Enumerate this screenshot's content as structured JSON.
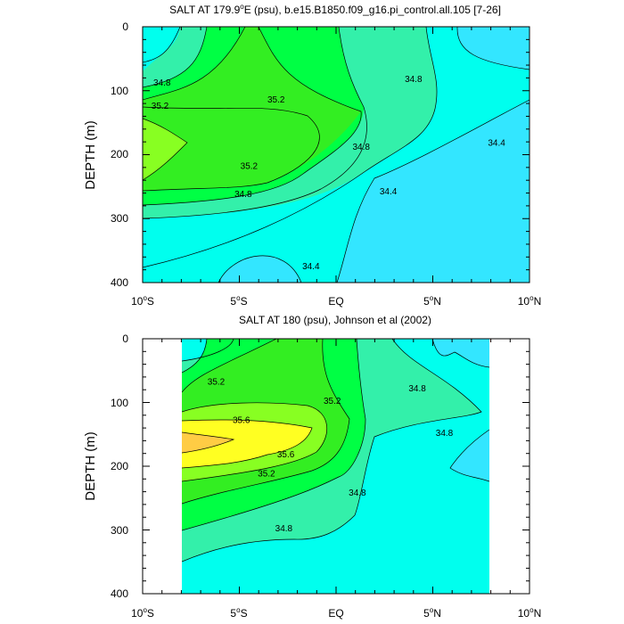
{
  "chart_data": [
    {
      "type": "contour",
      "title": "SALT AT 179.9°E (psu), b.e15.B1850.f09_g16.pi_control.all.105 [7-26]",
      "title_parts": {
        "pre": "SALT AT 179.9",
        "sup": "o",
        "post": "E (psu), b.e15.B1850.f09_g16.pi_control.all.105 [7-26]"
      },
      "ylabel": "DEPTH (m)",
      "x_ticks": [
        {
          "v": "10",
          "s": "o",
          "h": "S"
        },
        {
          "v": "5",
          "s": "o",
          "h": "S"
        },
        {
          "v": "EQ",
          "s": "",
          "h": ""
        },
        {
          "v": "5",
          "s": "o",
          "h": "N"
        },
        {
          "v": "10",
          "s": "o",
          "h": "N"
        }
      ],
      "y_ticks": [
        "0",
        "100",
        "200",
        "300",
        "400"
      ],
      "xlim": [
        -10,
        10
      ],
      "ylim": [
        400,
        0
      ],
      "contour_levels": [
        34.4,
        34.6,
        34.8,
        35.0,
        35.2,
        35.4
      ],
      "contour_labels": [
        {
          "text": "34.8",
          "lat": -9.0,
          "depth": 88
        },
        {
          "text": "35.2",
          "lat": -9.1,
          "depth": 124
        },
        {
          "text": "35.2",
          "lat": -3.1,
          "depth": 114
        },
        {
          "text": "35.2",
          "lat": -4.5,
          "depth": 218
        },
        {
          "text": "34.8",
          "lat": -4.8,
          "depth": 262
        },
        {
          "text": "34.8",
          "lat": 1.3,
          "depth": 188
        },
        {
          "text": "34.8",
          "lat": 4.0,
          "depth": 82
        },
        {
          "text": "34.4",
          "lat": 2.7,
          "depth": 258
        },
        {
          "text": "34.4",
          "lat": -1.3,
          "depth": 375
        },
        {
          "text": "34.4",
          "lat": 8.3,
          "depth": 182
        }
      ]
    },
    {
      "type": "contour",
      "title": "SALT AT 180 (psu), Johnson et al (2002)",
      "title_parts": {
        "pre": "SALT AT 180 (psu), Johnson et al (2002)",
        "sup": "",
        "post": ""
      },
      "ylabel": "DEPTH (m)",
      "x_ticks": [
        {
          "v": "10",
          "s": "o",
          "h": "S"
        },
        {
          "v": "5",
          "s": "o",
          "h": "S"
        },
        {
          "v": "EQ",
          "s": "",
          "h": ""
        },
        {
          "v": "5",
          "s": "o",
          "h": "N"
        },
        {
          "v": "10",
          "s": "o",
          "h": "N"
        }
      ],
      "y_ticks": [
        "0",
        "100",
        "200",
        "300",
        "400"
      ],
      "xlim": [
        -10,
        10
      ],
      "ylim": [
        400,
        0
      ],
      "data_lat_range": [
        -8,
        8
      ],
      "contour_levels": [
        34.6,
        34.8,
        35.0,
        35.2,
        35.4,
        35.6,
        35.8
      ],
      "contour_labels": [
        {
          "text": "35.2",
          "lat": -6.2,
          "depth": 68
        },
        {
          "text": "35.6",
          "lat": -4.9,
          "depth": 128
        },
        {
          "text": "35.6",
          "lat": -2.6,
          "depth": 182
        },
        {
          "text": "35.2",
          "lat": -3.6,
          "depth": 212
        },
        {
          "text": "35.2",
          "lat": -0.2,
          "depth": 98
        },
        {
          "text": "34.8",
          "lat": 4.2,
          "depth": 78
        },
        {
          "text": "34.8",
          "lat": 5.6,
          "depth": 148
        },
        {
          "text": "34.8",
          "lat": 1.1,
          "depth": 242
        },
        {
          "text": "34.8",
          "lat": -2.7,
          "depth": 298
        }
      ]
    }
  ],
  "colors": {
    "c1": "#33e6ff",
    "c2": "#00ffee",
    "c3": "#33f0aa",
    "c4": "#00ff44",
    "c5": "#33ee22",
    "c6": "#88ff22",
    "c7": "#ffff22",
    "c8": "#ffcc44"
  }
}
